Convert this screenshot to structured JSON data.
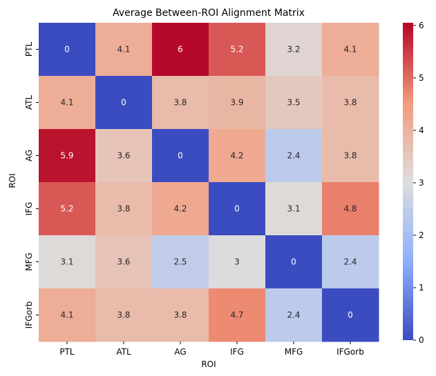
{
  "chart_data": {
    "type": "heatmap",
    "title": "Average Between-ROI Alignment Matrix",
    "xlabel": "ROI",
    "ylabel": "ROI",
    "x_categories": [
      "PTL",
      "ATL",
      "AG",
      "IFG",
      "MFG",
      "IFGorb"
    ],
    "y_categories": [
      "PTL",
      "ATL",
      "AG",
      "IFG",
      "MFG",
      "IFGorb"
    ],
    "values": [
      [
        0,
        4.1,
        6,
        5.2,
        3.2,
        4.1
      ],
      [
        4.1,
        0,
        3.8,
        3.9,
        3.5,
        3.8
      ],
      [
        5.9,
        3.6,
        0,
        4.2,
        2.4,
        3.8
      ],
      [
        5.2,
        3.8,
        4.2,
        0,
        3.1,
        4.8
      ],
      [
        3.1,
        3.6,
        2.5,
        3,
        0,
        2.4
      ],
      [
        4.1,
        3.8,
        3.8,
        4.7,
        2.4,
        0
      ]
    ],
    "color_range": [
      0,
      6.05
    ],
    "colormap": "coolwarm",
    "colorbar_ticks": [
      0,
      1,
      2,
      3,
      4,
      5,
      6
    ],
    "colorbar": true,
    "grid": false
  }
}
